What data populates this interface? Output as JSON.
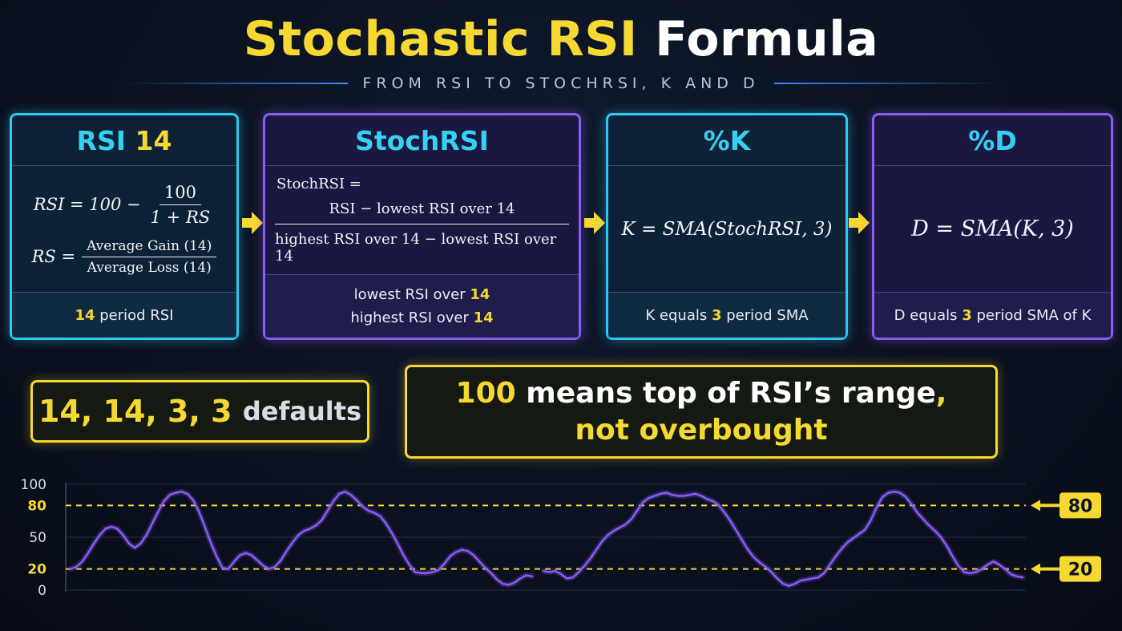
{
  "title": {
    "part1": "Stochastic RSI",
    "part2": "Formula"
  },
  "subtitle": "FROM RSI TO STOCHRSI, K AND D",
  "cards": {
    "rsi": {
      "head_a": "RSI",
      "head_b": "14",
      "rsi_lhs": "RSI = 100 −",
      "rsi_num": "100",
      "rsi_den": "1 + RS",
      "rs_lhs": "RS =",
      "rs_num": "Average Gain (14)",
      "rs_den": "Average Loss (14)",
      "foot_num": "14",
      "foot_text": "period RSI"
    },
    "stochrsi": {
      "head": "StochRSI",
      "lhs": "StochRSI =",
      "num": "RSI − lowest RSI over 14",
      "den": "highest RSI over 14 − lowest RSI over 14",
      "foot1_text": "lowest RSI over",
      "foot1_num": "14",
      "foot2_text": "highest RSI over",
      "foot2_num": "14"
    },
    "k": {
      "head": "%K",
      "formula": "K = SMA(StochRSI, 3)",
      "foot_a": "K equals",
      "foot_num": "3",
      "foot_b": "period SMA"
    },
    "d": {
      "head": "%D",
      "formula": "D = SMA(K, 3)",
      "foot_a": "D equals",
      "foot_num": "3",
      "foot_b": "period SMA of K"
    }
  },
  "defaults_badge": {
    "values": "14, 14, 3, 3",
    "word": "defaults"
  },
  "note_badge": {
    "line1_num": "100",
    "line1_text": "means top of RSI’s range",
    "line1_comma": ",",
    "line2": "not overbought"
  },
  "colors": {
    "yellow": "#f5d832",
    "cyan": "#2fc8ee",
    "purple": "#8a5cf0",
    "line": "#8b5cf6"
  },
  "chart_data": {
    "type": "line",
    "y_ticks": [
      "100",
      "80",
      "50",
      "20",
      "0"
    ],
    "y_tick_values": [
      100,
      80,
      50,
      20,
      0
    ],
    "ylim": [
      0,
      100
    ],
    "reference_lines": [
      {
        "value": 80,
        "label": "80"
      },
      {
        "value": 20,
        "label": "20"
      }
    ],
    "series": [
      {
        "values": [
          20,
          22,
          27,
          35,
          44,
          52,
          58,
          60,
          58,
          52,
          44,
          40,
          44,
          52,
          63,
          74,
          84,
          90,
          92,
          93,
          91,
          85,
          74,
          60,
          45,
          32,
          21,
          20,
          27,
          33,
          35,
          33,
          28,
          23,
          20,
          22,
          28,
          37,
          45,
          52,
          56,
          58,
          61,
          66,
          75,
          84,
          91,
          93,
          90,
          85,
          79,
          75,
          73,
          70,
          63,
          54,
          44,
          33,
          24,
          17,
          16,
          16,
          17,
          19,
          25,
          32,
          36,
          38,
          37,
          33,
          27,
          21,
          16,
          10,
          6,
          5,
          7,
          11,
          14,
          13,
          null,
          18,
          17,
          18,
          15,
          11,
          12,
          17,
          23,
          30,
          38,
          46,
          52,
          56,
          59,
          62,
          67,
          75,
          83,
          87,
          89,
          91,
          92,
          90,
          89,
          89,
          90,
          91,
          89,
          86,
          84,
          80,
          73,
          65,
          56,
          47,
          38,
          31,
          26,
          22,
          17,
          11,
          6,
          4,
          6,
          9,
          10,
          11,
          12,
          16,
          24,
          32,
          39,
          45,
          49,
          53,
          57,
          66,
          78,
          88,
          92,
          93,
          92,
          88,
          81,
          73,
          67,
          61,
          56,
          50,
          42,
          32,
          23,
          17,
          16,
          17,
          20,
          24,
          27,
          24,
          20,
          15,
          13,
          12
        ]
      }
    ]
  }
}
